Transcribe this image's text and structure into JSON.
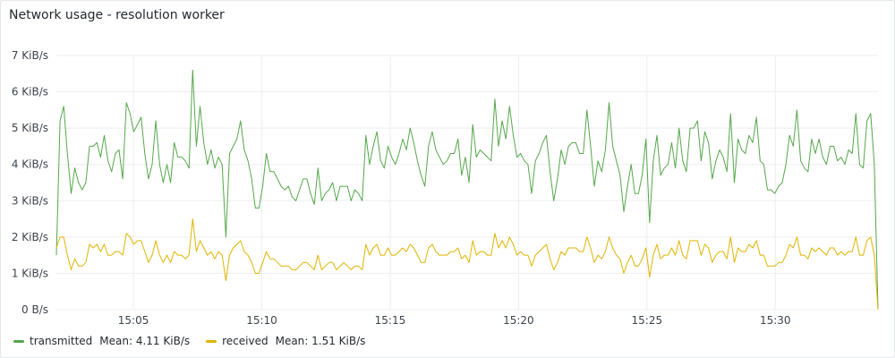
{
  "panel": {
    "title": "Network usage - resolution worker"
  },
  "colors": {
    "transmitted": "#56a64b",
    "received": "#e0b400",
    "grid": "#ebedf0",
    "axis_text": "#3d434a"
  },
  "legend": [
    {
      "name": "transmitted",
      "stat": "Mean: 4.11 KiB/s",
      "color": "#56a64b"
    },
    {
      "name": "received",
      "stat": "Mean: 1.51 KiB/s",
      "color": "#e0b400"
    }
  ],
  "chart_data": {
    "type": "line",
    "title": "Network usage - resolution worker",
    "xlabel": "",
    "ylabel": "",
    "x_start": "15:02",
    "x_end": "15:34",
    "xticks": [
      "15:05",
      "15:10",
      "15:15",
      "15:20",
      "15:25",
      "15:30"
    ],
    "yticks": [
      "0 B/s",
      "1 KiB/s",
      "2 KiB/s",
      "3 KiB/s",
      "4 KiB/s",
      "5 KiB/s",
      "6 KiB/s",
      "7 KiB/s"
    ],
    "ylim": [
      0,
      7
    ],
    "y_unit": "KiB/s",
    "grid": true,
    "legend_position": "bottom-left",
    "series": [
      {
        "name": "transmitted",
        "color": "#56a64b",
        "values": [
          1.5,
          5.2,
          5.6,
          4.3,
          3.2,
          3.9,
          3.5,
          3.3,
          3.5,
          4.5,
          4.5,
          4.6,
          4.2,
          4.8,
          4.1,
          3.8,
          4.3,
          4.4,
          3.6,
          5.7,
          5.4,
          4.9,
          5.1,
          5.3,
          4.3,
          3.6,
          4.0,
          5.2,
          4.0,
          3.5,
          4.0,
          3.5,
          4.6,
          4.2,
          4.2,
          4.1,
          3.9,
          6.6,
          4.5,
          5.6,
          4.6,
          4.0,
          4.4,
          3.9,
          4.2,
          4.0,
          2.0,
          4.3,
          4.5,
          4.7,
          5.2,
          4.4,
          4.1,
          3.6,
          2.8,
          2.8,
          3.4,
          4.3,
          3.8,
          3.8,
          3.6,
          3.4,
          3.3,
          3.4,
          3.1,
          3.0,
          3.3,
          3.6,
          3.6,
          3.2,
          2.9,
          3.9,
          3.0,
          3.2,
          3.3,
          3.5,
          3.0,
          3.4,
          3.4,
          3.4,
          3.0,
          3.3,
          3.2,
          3.0,
          4.8,
          4.0,
          4.5,
          4.9,
          4.1,
          3.9,
          4.5,
          4.2,
          4.0,
          4.3,
          4.7,
          4.4,
          5.0,
          4.6,
          4.1,
          3.7,
          3.4,
          4.5,
          4.9,
          4.4,
          4.2,
          4.0,
          4.1,
          4.3,
          4.3,
          4.7,
          3.7,
          4.2,
          3.5,
          5.1,
          4.2,
          4.4,
          4.3,
          4.2,
          4.1,
          5.8,
          4.5,
          5.2,
          4.7,
          5.6,
          4.8,
          4.2,
          4.3,
          4.1,
          4.0,
          3.2,
          4.1,
          4.3,
          4.6,
          4.8,
          3.8,
          3.0,
          3.6,
          4.4,
          4.0,
          4.5,
          4.6,
          4.6,
          4.3,
          4.3,
          5.5,
          4.5,
          3.4,
          4.1,
          3.8,
          4.4,
          5.7,
          4.5,
          4.1,
          3.7,
          2.7,
          3.4,
          4.0,
          3.2,
          3.2,
          3.7,
          4.7,
          2.4,
          4.1,
          4.8,
          3.7,
          3.9,
          4.0,
          4.6,
          3.9,
          5.0,
          4.1,
          3.8,
          5.0,
          5.0,
          5.2,
          4.1,
          4.9,
          4.6,
          3.6,
          4.1,
          4.4,
          4.2,
          3.8,
          5.4,
          3.5,
          4.7,
          4.4,
          4.3,
          4.8,
          4.6,
          5.3,
          4.1,
          4.0,
          3.3,
          3.3,
          3.2,
          3.4,
          3.5,
          4.0,
          4.8,
          4.5,
          5.5,
          4.1,
          3.9,
          3.8,
          4.7,
          4.3,
          4.7,
          4.2,
          4.0,
          4.5,
          4.5,
          4.1,
          4.2,
          4.0,
          4.4,
          4.3,
          5.4,
          4.0,
          3.9,
          5.2,
          5.4,
          4.0,
          0.0
        ]
      },
      {
        "name": "received",
        "color": "#e0b400",
        "values": [
          1.7,
          2.0,
          2.0,
          1.5,
          1.1,
          1.4,
          1.2,
          1.2,
          1.3,
          1.8,
          1.7,
          1.8,
          1.6,
          1.8,
          1.5,
          1.5,
          1.6,
          1.6,
          1.5,
          2.1,
          2.0,
          1.8,
          1.9,
          1.9,
          1.6,
          1.3,
          1.5,
          1.9,
          1.5,
          1.3,
          1.5,
          1.3,
          1.6,
          1.5,
          1.5,
          1.4,
          1.5,
          2.5,
          1.6,
          1.9,
          1.7,
          1.5,
          1.6,
          1.4,
          1.6,
          1.5,
          0.8,
          1.5,
          1.7,
          1.8,
          1.9,
          1.6,
          1.5,
          1.3,
          1.0,
          1.0,
          1.3,
          1.6,
          1.4,
          1.4,
          1.3,
          1.2,
          1.2,
          1.2,
          1.1,
          1.1,
          1.2,
          1.3,
          1.3,
          1.2,
          1.1,
          1.5,
          1.1,
          1.2,
          1.3,
          1.3,
          1.1,
          1.2,
          1.3,
          1.2,
          1.1,
          1.2,
          1.2,
          1.1,
          1.8,
          1.5,
          1.7,
          1.8,
          1.5,
          1.5,
          1.7,
          1.5,
          1.5,
          1.6,
          1.7,
          1.6,
          1.8,
          1.7,
          1.5,
          1.3,
          1.3,
          1.7,
          1.8,
          1.6,
          1.5,
          1.5,
          1.5,
          1.6,
          1.6,
          1.7,
          1.4,
          1.5,
          1.3,
          1.9,
          1.5,
          1.6,
          1.6,
          1.5,
          1.5,
          2.1,
          1.7,
          1.9,
          1.7,
          2.0,
          1.8,
          1.5,
          1.6,
          1.5,
          1.5,
          1.2,
          1.5,
          1.6,
          1.7,
          1.8,
          1.4,
          1.1,
          1.3,
          1.6,
          1.5,
          1.7,
          1.7,
          1.7,
          1.6,
          1.6,
          2.0,
          1.7,
          1.3,
          1.5,
          1.4,
          1.6,
          2.0,
          1.7,
          1.5,
          1.4,
          1.0,
          1.3,
          1.5,
          1.2,
          1.2,
          1.4,
          1.7,
          0.9,
          1.5,
          1.8,
          1.4,
          1.5,
          1.5,
          1.7,
          1.5,
          1.9,
          1.5,
          1.4,
          1.9,
          1.9,
          1.9,
          1.5,
          1.8,
          1.7,
          1.3,
          1.5,
          1.6,
          1.6,
          1.4,
          2.0,
          1.3,
          1.7,
          1.6,
          1.6,
          1.8,
          1.7,
          1.9,
          1.5,
          1.5,
          1.2,
          1.2,
          1.2,
          1.3,
          1.3,
          1.5,
          1.8,
          1.7,
          2.0,
          1.5,
          1.5,
          1.4,
          1.7,
          1.6,
          1.7,
          1.6,
          1.5,
          1.7,
          1.7,
          1.5,
          1.6,
          1.5,
          1.6,
          1.6,
          2.0,
          1.5,
          1.5,
          1.9,
          2.0,
          1.5,
          0.0
        ]
      }
    ]
  }
}
